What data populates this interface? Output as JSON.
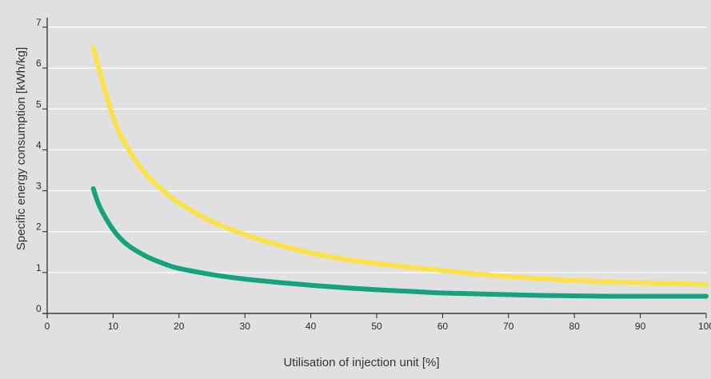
{
  "chart_data": {
    "type": "line",
    "title": "",
    "xlabel": "Utilisation of injection unit [%]",
    "ylabel": "Specific energy consumption [kWh/kg]",
    "xlim": [
      0,
      100
    ],
    "ylim": [
      0,
      7
    ],
    "x_ticks": [
      0,
      10,
      20,
      30,
      40,
      50,
      60,
      70,
      80,
      90,
      100
    ],
    "y_ticks": [
      0,
      1,
      2,
      3,
      4,
      5,
      6,
      7
    ],
    "grid": "horizontal",
    "legend": "none",
    "background_color": "#e0e0e0",
    "grid_color": "#ffffff",
    "series": [
      {
        "color": "#fbe24a",
        "x": [
          7,
          8,
          10,
          12,
          15,
          18,
          20,
          25,
          30,
          35,
          40,
          45,
          50,
          55,
          60,
          65,
          70,
          75,
          80,
          85,
          90,
          95,
          100
        ],
        "y": [
          6.5,
          5.9,
          4.8,
          4.1,
          3.4,
          2.95,
          2.7,
          2.25,
          1.93,
          1.68,
          1.48,
          1.33,
          1.22,
          1.13,
          1.05,
          0.97,
          0.9,
          0.85,
          0.81,
          0.77,
          0.75,
          0.73,
          0.71
        ]
      },
      {
        "color": "#14a37c",
        "x": [
          7,
          8,
          10,
          12,
          15,
          18,
          20,
          25,
          30,
          35,
          40,
          45,
          50,
          55,
          60,
          65,
          70,
          75,
          80,
          85,
          90,
          95,
          100
        ],
        "y": [
          3.05,
          2.6,
          2.05,
          1.7,
          1.4,
          1.2,
          1.1,
          0.95,
          0.84,
          0.76,
          0.69,
          0.63,
          0.58,
          0.54,
          0.5,
          0.48,
          0.46,
          0.44,
          0.43,
          0.42,
          0.42,
          0.42,
          0.42
        ]
      }
    ]
  }
}
